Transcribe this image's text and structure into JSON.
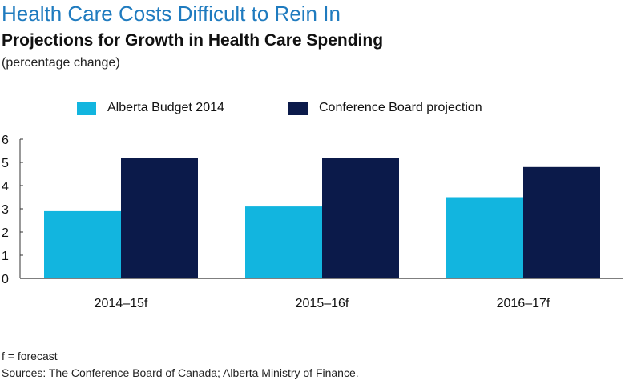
{
  "header": {
    "title": "Health Care Costs Difficult to Rein In",
    "subtitle": "Projections for Growth in Health Care Spending",
    "unit": "(percentage change)"
  },
  "footer": {
    "note": "f = forecast",
    "sources": "Sources: The Conference Board of Canada; Alberta Ministry of Finance."
  },
  "chart_data": {
    "type": "bar",
    "title": "Projections for Growth in Health Care Spending",
    "subtitle": "(percentage change)",
    "categories": [
      "2014–15f",
      "2015–16f",
      "2016–17f"
    ],
    "series": [
      {
        "name": "Alberta Budget 2014",
        "color": "#12b5df",
        "values": [
          2.9,
          3.1,
          3.5
        ]
      },
      {
        "name": "Conference Board projection",
        "color": "#0b1a4a",
        "values": [
          5.2,
          5.2,
          4.8
        ]
      }
    ],
    "ylim": [
      0,
      6
    ],
    "yticks": [
      0,
      1,
      2,
      3,
      4,
      5,
      6
    ],
    "grid": false,
    "legend": "top"
  }
}
